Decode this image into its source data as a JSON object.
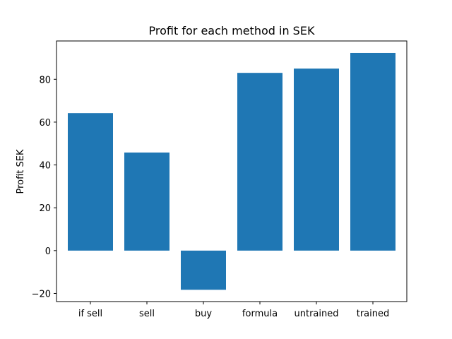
{
  "chart_data": {
    "type": "bar",
    "title": "Profit for each method in SEK",
    "xlabel": "",
    "ylabel": "Profit SEK",
    "categories": [
      "if sell",
      "sell",
      "buy",
      "formula",
      "untrained",
      "trained"
    ],
    "values": [
      64.2,
      45.8,
      -18.3,
      83.0,
      85.0,
      92.3
    ],
    "ylim": [
      -23.8,
      97.9
    ],
    "yticks": [
      -20,
      0,
      20,
      40,
      60,
      80
    ],
    "ytick_labels": [
      "−20",
      "0",
      "20",
      "40",
      "60",
      "80"
    ],
    "bar_color": "#1f77b4",
    "grid": false,
    "legend": "none"
  }
}
